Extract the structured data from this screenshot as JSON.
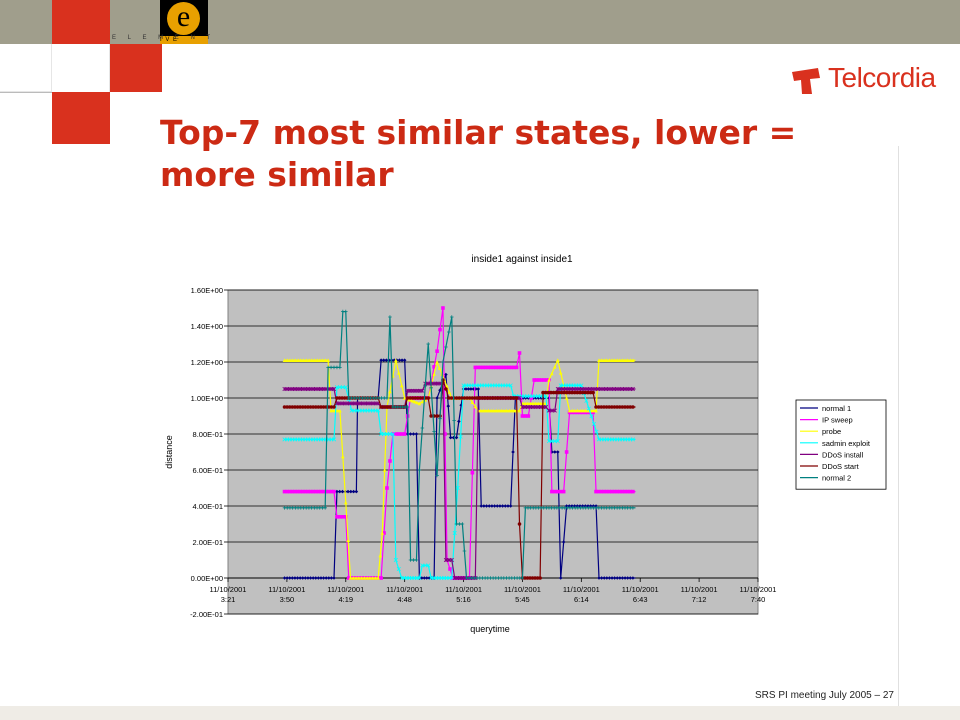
{
  "header": {
    "elementive_label": "E L E M E N T",
    "elementive_suffix": "I V E",
    "logo_letter": "e",
    "brand": "Telcordia"
  },
  "slide": {
    "title": "Top-7 most similar states, lower = more similar",
    "footer": "SRS PI meeting July 2005 – 27"
  },
  "colors": {
    "title": "#cc2a14",
    "accent_red": "#d63a1e",
    "plot_bg": "#c0c0c0"
  },
  "chart_data": {
    "type": "line",
    "title": "inside1 against inside1",
    "xlabel": "querytime",
    "ylabel": "distance",
    "ylim": [
      -0.2,
      1.6
    ],
    "yticks": [
      "1.60E+00",
      "1.40E+00",
      "1.20E+00",
      "1.00E+00",
      "8.00E-01",
      "6.00E-01",
      "4.00E-01",
      "2.00E-01",
      "0.00E+00",
      "-2.00E-01"
    ],
    "xticks": [
      {
        "date": "11/10/2001",
        "time": "3:21"
      },
      {
        "date": "11/10/2001",
        "time": "3:50"
      },
      {
        "date": "11/10/2001",
        "time": "4:19"
      },
      {
        "date": "11/10/2001",
        "time": "4:48"
      },
      {
        "date": "11/10/2001",
        "time": "5:16"
      },
      {
        "date": "11/10/2001",
        "time": "5:45"
      },
      {
        "date": "11/10/2001",
        "time": "6:14"
      },
      {
        "date": "11/10/2001",
        "time": "6:43"
      },
      {
        "date": "11/10/2001",
        "time": "7:12"
      },
      {
        "date": "11/10/2001",
        "time": "7:40"
      }
    ],
    "grid": true,
    "legend_position": "right",
    "series": [
      {
        "name": "normal 1",
        "color": "#000080",
        "marker": "diamond",
        "points": [
          [
            0.96,
            0
          ],
          [
            1.8,
            0
          ],
          [
            1.85,
            0.48
          ],
          [
            2.18,
            0.48
          ],
          [
            2.2,
            1.0
          ],
          [
            2.55,
            1.0
          ],
          [
            2.6,
            1.21
          ],
          [
            3.0,
            1.21
          ],
          [
            3.05,
            0.8
          ],
          [
            3.2,
            0.8
          ],
          [
            3.25,
            0
          ],
          [
            3.5,
            0
          ],
          [
            3.55,
            1.0
          ],
          [
            3.7,
            1.13
          ],
          [
            3.78,
            0.78
          ],
          [
            3.88,
            0.78
          ],
          [
            4.0,
            1.05
          ],
          [
            4.25,
            1.05
          ],
          [
            4.3,
            0.4
          ],
          [
            4.8,
            0.4
          ],
          [
            4.88,
            1.0
          ],
          [
            5.45,
            1.0
          ],
          [
            5.5,
            0.7
          ],
          [
            5.6,
            0.7
          ],
          [
            5.65,
            0
          ],
          [
            5.75,
            0.4
          ],
          [
            6.25,
            0.4
          ],
          [
            6.3,
            0
          ],
          [
            6.92,
            0
          ]
        ]
      },
      {
        "name": "IP sweep",
        "color": "#ff00ff",
        "marker": "square",
        "points": [
          [
            0.96,
            0.48
          ],
          [
            1.8,
            0.48
          ],
          [
            1.85,
            0.34
          ],
          [
            2.0,
            0.34
          ],
          [
            2.05,
            0
          ],
          [
            2.6,
            0
          ],
          [
            2.7,
            0.5
          ],
          [
            2.8,
            0.8
          ],
          [
            3.0,
            0.8
          ],
          [
            3.1,
            1.0
          ],
          [
            3.4,
            1.0
          ],
          [
            3.55,
            1.26
          ],
          [
            3.65,
            1.5
          ],
          [
            3.72,
            0.1
          ],
          [
            3.82,
            0
          ],
          [
            4.1,
            0
          ],
          [
            4.2,
            1.17
          ],
          [
            4.9,
            1.17
          ],
          [
            4.95,
            1.25
          ],
          [
            5.0,
            0.9
          ],
          [
            5.1,
            0.9
          ],
          [
            5.2,
            1.1
          ],
          [
            5.45,
            1.1
          ],
          [
            5.5,
            0.48
          ],
          [
            5.7,
            0.48
          ],
          [
            5.8,
            0.92
          ],
          [
            6.2,
            0.92
          ],
          [
            6.25,
            0.48
          ],
          [
            6.92,
            0.48
          ]
        ]
      },
      {
        "name": "probe",
        "color": "#ffff00",
        "marker": "triangle",
        "points": [
          [
            0.96,
            1.21
          ],
          [
            1.7,
            1.21
          ],
          [
            1.75,
            0.93
          ],
          [
            1.9,
            0.93
          ],
          [
            2.0,
            0.42
          ],
          [
            2.08,
            0
          ],
          [
            2.55,
            0
          ],
          [
            2.62,
            0.25
          ],
          [
            2.7,
            0.95
          ],
          [
            2.85,
            1.21
          ],
          [
            3.0,
            1.0
          ],
          [
            3.25,
            0.97
          ],
          [
            3.4,
            1.0
          ],
          [
            3.55,
            1.2
          ],
          [
            3.8,
            1.0
          ],
          [
            4.1,
            1.0
          ],
          [
            4.25,
            0.93
          ],
          [
            4.95,
            0.93
          ],
          [
            5.0,
            0.97
          ],
          [
            5.4,
            0.97
          ],
          [
            5.45,
            1.1
          ],
          [
            5.6,
            1.21
          ],
          [
            5.8,
            0.93
          ],
          [
            6.25,
            0.93
          ],
          [
            6.3,
            1.21
          ],
          [
            6.92,
            1.21
          ]
        ]
      },
      {
        "name": "sadmin exploit",
        "color": "#00ffff",
        "marker": "x",
        "points": [
          [
            0.96,
            0.77
          ],
          [
            1.8,
            0.77
          ],
          [
            1.85,
            1.06
          ],
          [
            2.0,
            1.06
          ],
          [
            2.1,
            0.93
          ],
          [
            2.55,
            0.93
          ],
          [
            2.6,
            0.8
          ],
          [
            2.8,
            0.8
          ],
          [
            2.85,
            0.1
          ],
          [
            2.95,
            0
          ],
          [
            3.25,
            0
          ],
          [
            3.3,
            0.07
          ],
          [
            3.4,
            0.07
          ],
          [
            3.45,
            0
          ],
          [
            3.8,
            0
          ],
          [
            3.9,
            0.5
          ],
          [
            4.0,
            1.07
          ],
          [
            4.8,
            1.07
          ],
          [
            4.85,
            1.01
          ],
          [
            5.4,
            1.01
          ],
          [
            5.45,
            0.76
          ],
          [
            5.6,
            0.76
          ],
          [
            5.65,
            1.07
          ],
          [
            6.0,
            1.07
          ],
          [
            6.3,
            0.77
          ],
          [
            6.92,
            0.77
          ]
        ]
      },
      {
        "name": "DDoS install",
        "color": "#800080",
        "marker": "star",
        "points": [
          [
            0.96,
            1.05
          ],
          [
            1.8,
            1.05
          ],
          [
            1.85,
            0.97
          ],
          [
            2.55,
            0.97
          ],
          [
            2.6,
            0.95
          ],
          [
            3.0,
            0.95
          ],
          [
            3.05,
            1.04
          ],
          [
            3.3,
            1.04
          ],
          [
            3.35,
            1.08
          ],
          [
            3.65,
            1.08
          ],
          [
            3.7,
            0.1
          ],
          [
            3.8,
            0.1
          ],
          [
            3.85,
            0
          ],
          [
            4.2,
            0
          ],
          [
            4.25,
            1.0
          ],
          [
            4.95,
            1.0
          ],
          [
            5.0,
            0.95
          ],
          [
            5.4,
            0.95
          ],
          [
            5.45,
            0.93
          ],
          [
            5.55,
            0.93
          ],
          [
            5.6,
            1.05
          ],
          [
            6.92,
            1.05
          ]
        ]
      },
      {
        "name": "DDoS start",
        "color": "#800000",
        "marker": "circle",
        "points": [
          [
            0.96,
            0.95
          ],
          [
            1.8,
            0.95
          ],
          [
            1.85,
            1.0
          ],
          [
            2.55,
            1.0
          ],
          [
            2.6,
            0.95
          ],
          [
            3.0,
            0.95
          ],
          [
            3.05,
            1.0
          ],
          [
            3.4,
            1.0
          ],
          [
            3.45,
            0.9
          ],
          [
            3.6,
            0.9
          ],
          [
            3.65,
            1.1
          ],
          [
            3.75,
            1.0
          ],
          [
            4.9,
            1.0
          ],
          [
            4.95,
            0.3
          ],
          [
            5.0,
            0
          ],
          [
            5.3,
            0
          ],
          [
            5.35,
            1.03
          ],
          [
            6.2,
            1.03
          ],
          [
            6.25,
            0.95
          ],
          [
            6.92,
            0.95
          ]
        ]
      },
      {
        "name": "normal 2",
        "color": "#008080",
        "marker": "plus",
        "points": [
          [
            0.96,
            0.39
          ],
          [
            1.65,
            0.39
          ],
          [
            1.7,
            1.17
          ],
          [
            1.9,
            1.17
          ],
          [
            1.95,
            1.48
          ],
          [
            2.0,
            1.48
          ],
          [
            2.05,
            1.0
          ],
          [
            2.7,
            1.0
          ],
          [
            2.75,
            1.45
          ],
          [
            2.8,
            0.95
          ],
          [
            3.05,
            0.95
          ],
          [
            3.1,
            0.1
          ],
          [
            3.2,
            0.1
          ],
          [
            3.25,
            0.6
          ],
          [
            3.4,
            1.3
          ],
          [
            3.55,
            0.57
          ],
          [
            3.65,
            1.2
          ],
          [
            3.8,
            1.45
          ],
          [
            3.88,
            0.3
          ],
          [
            3.98,
            0.3
          ],
          [
            4.05,
            0
          ],
          [
            5.0,
            0
          ],
          [
            5.05,
            0.39
          ],
          [
            6.92,
            0.39
          ]
        ]
      }
    ]
  }
}
